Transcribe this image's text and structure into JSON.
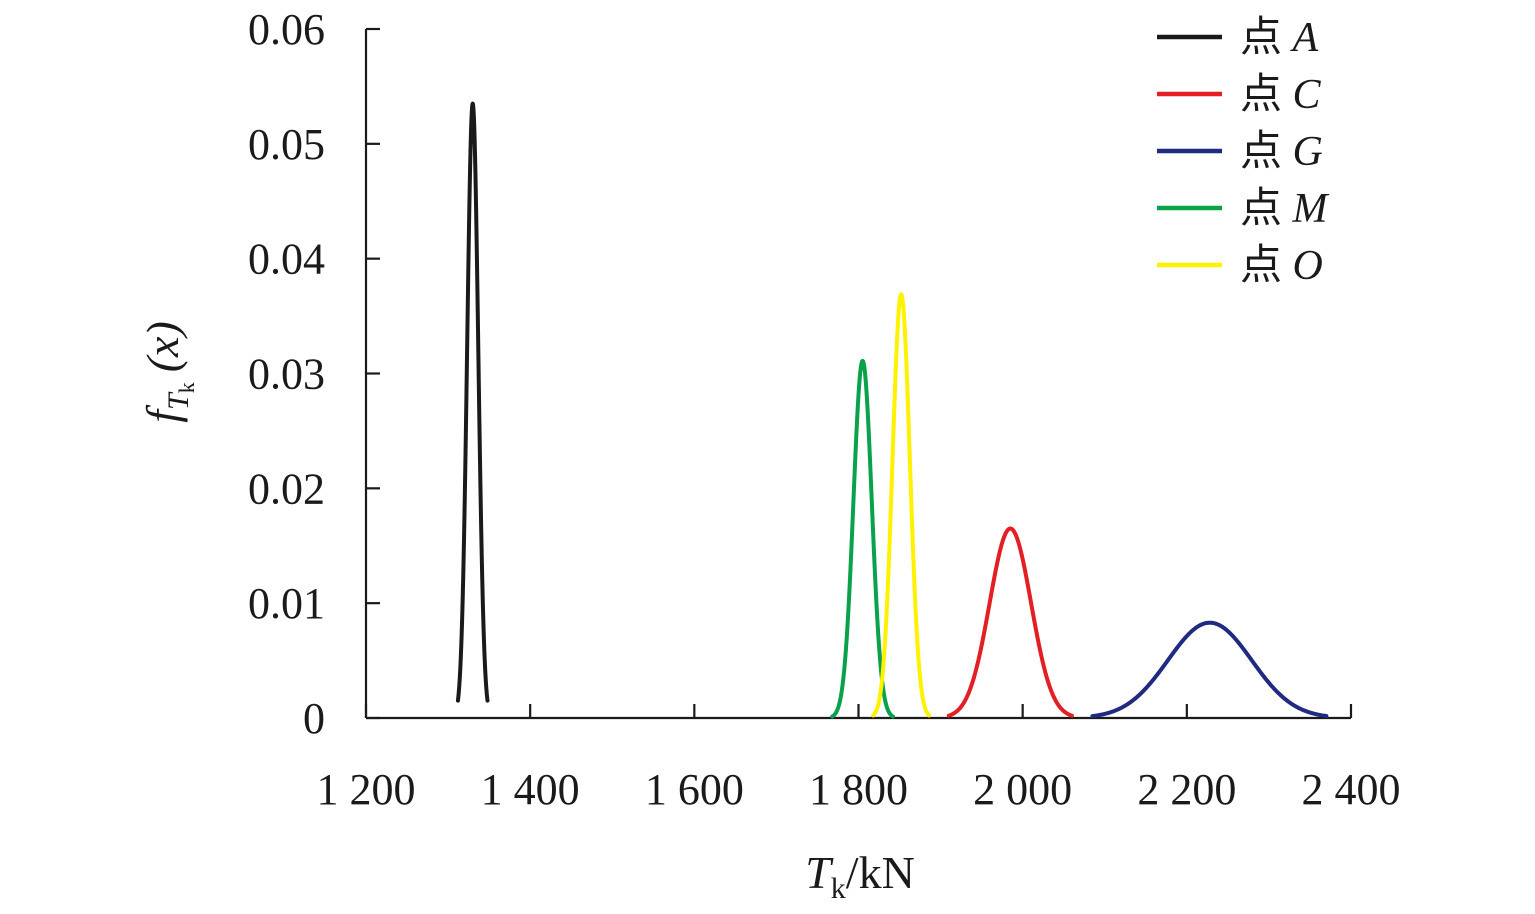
{
  "chart_data": {
    "type": "line",
    "xlabel": {
      "symbol": "T",
      "subscript": "k",
      "unit": "/kN"
    },
    "ylabel": {
      "func": "f",
      "sub": "T",
      "subsub": "k",
      "arg": "(x)"
    },
    "xlim": [
      1200,
      2400
    ],
    "ylim": [
      0,
      0.06
    ],
    "x_ticks": [
      1200,
      1400,
      1600,
      1800,
      2000,
      2200,
      2400
    ],
    "x_tick_labels": [
      "1 200",
      "1 400",
      "1 600",
      "1 800",
      "2 000",
      "2 200",
      "2 400"
    ],
    "y_ticks": [
      0,
      0.01,
      0.02,
      0.03,
      0.04,
      0.05,
      0.06
    ],
    "y_tick_labels": [
      "0",
      "0.01",
      "0.02",
      "0.03",
      "0.04",
      "0.05",
      "0.06"
    ],
    "grid": false,
    "legend_position": "top-right",
    "series": [
      {
        "name": "点 A",
        "prefix": "点",
        "point": "A",
        "color": "#1a1a1a",
        "mean": 1330,
        "peak": 0.0535,
        "x": [
          1312,
          1322,
          1326,
          1330,
          1334,
          1338,
          1348
        ],
        "y": [
          0.0012,
          0.0268,
          0.0452,
          0.0535,
          0.0452,
          0.0268,
          0.0012
        ]
      },
      {
        "name": "点 C",
        "prefix": "点",
        "point": "C",
        "color": "#e31e24",
        "mean": 1985,
        "peak": 0.0165,
        "x": [
          1910,
          1940,
          1960,
          1985,
          2010,
          2030,
          2060
        ],
        "y": [
          0.0002,
          0.0035,
          0.01,
          0.0165,
          0.01,
          0.0035,
          0.0002
        ]
      },
      {
        "name": "点 G",
        "prefix": "点",
        "point": "G",
        "color": "#1f2a80",
        "mean": 2228,
        "peak": 0.0083,
        "x": [
          2085,
          2140,
          2180,
          2228,
          2276,
          2316,
          2370
        ],
        "y": [
          0.0001,
          0.002,
          0.0055,
          0.0083,
          0.0055,
          0.002,
          0.0001
        ]
      },
      {
        "name": "点 M",
        "prefix": "点",
        "point": "M",
        "color": "#0aa14b",
        "mean": 1805,
        "peak": 0.0311,
        "x": [
          1768,
          1790,
          1798,
          1805,
          1812,
          1820,
          1842
        ],
        "y": [
          0.0003,
          0.0123,
          0.0248,
          0.0311,
          0.0248,
          0.0123,
          0.0003
        ]
      },
      {
        "name": "点 O",
        "prefix": "点",
        "point": "O",
        "color": "#fff200",
        "mean": 1852,
        "peak": 0.0369,
        "x": [
          1818,
          1838,
          1845,
          1852,
          1859,
          1866,
          1886
        ],
        "y": [
          0.0004,
          0.0146,
          0.0293,
          0.0369,
          0.0293,
          0.0146,
          0.0004
        ]
      }
    ]
  }
}
